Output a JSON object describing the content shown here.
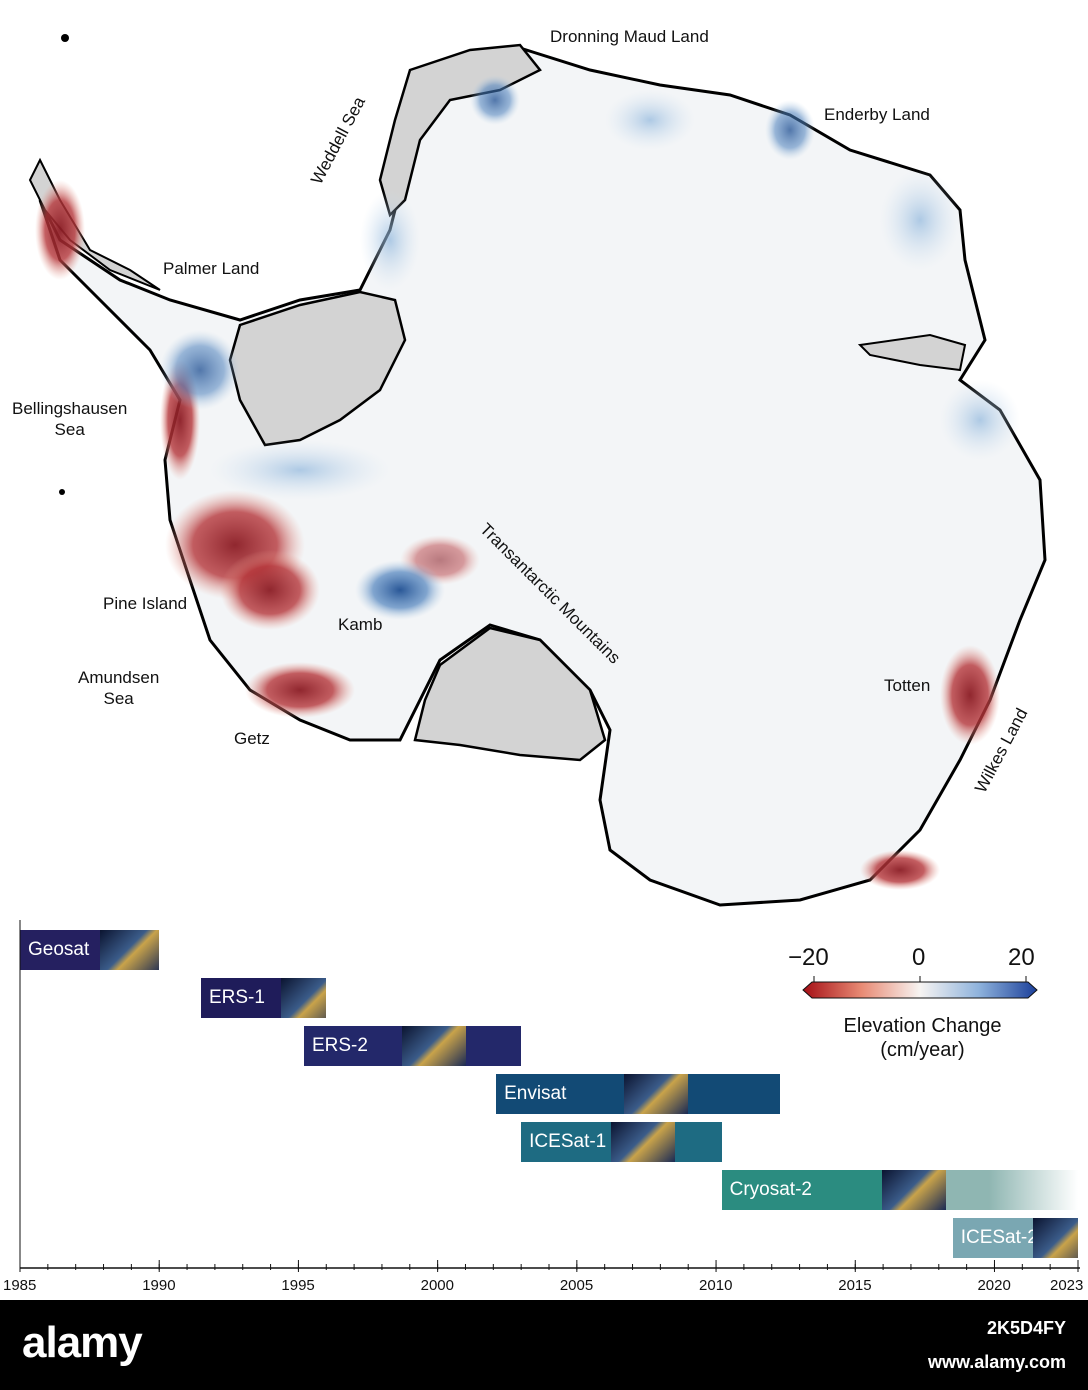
{
  "map": {
    "regions": {
      "dronning": "Dronning Maud Land",
      "weddell": "Weddell Sea",
      "enderby": "Enderby Land",
      "palmer": "Palmer Land",
      "bellingshausen": "Bellingshausen\nSea",
      "transantarctic": "Transantarctic Mountains",
      "pine_island": "Pine Island",
      "kamb": "Kamb",
      "amundsen": "Amundsen\nSea",
      "totten": "Totten",
      "getz": "Getz",
      "wilkes": "Wilkes Land"
    },
    "colors": {
      "land": "#f3f5f7",
      "shelf": "#d3d3d3",
      "loss": "#8b1c24",
      "gain": "#1f4f92"
    }
  },
  "colorbar": {
    "title_line1": "Elevation Change",
    "title_line2": "(cm/year)",
    "ticks": [
      "−20",
      "0",
      "20"
    ]
  },
  "timeline": {
    "missions": [
      {
        "name": "Geosat",
        "start": 1985,
        "end": 1990,
        "color": "#252060"
      },
      {
        "name": "ERS-1",
        "start": 1991.5,
        "end": 1996,
        "color": "#1f1c5a"
      },
      {
        "name": "ERS-2",
        "start": 1995.2,
        "end": 2003,
        "color": "#23286a"
      },
      {
        "name": "Envisat",
        "start": 2002.1,
        "end": 2012.3,
        "color": "#124a75"
      },
      {
        "name": "ICESat-1",
        "start": 2003,
        "end": 2010.2,
        "color": "#1e6b82"
      },
      {
        "name": "Cryosat-2",
        "start": 2010.2,
        "end": 2023,
        "color": "#2b8c80"
      },
      {
        "name": "ICESat-2",
        "start": 2018.5,
        "end": 2023,
        "color": "#7aa7b2"
      }
    ],
    "axis": {
      "range": [
        1985,
        2023
      ],
      "ticks": [
        "1985",
        "1990",
        "1995",
        "2000",
        "2005",
        "2010",
        "2015",
        "2020",
        "2023"
      ]
    }
  },
  "footer": {
    "logo": "alamy",
    "image_id": "2K5D4FY",
    "url": "www.alamy.com"
  }
}
